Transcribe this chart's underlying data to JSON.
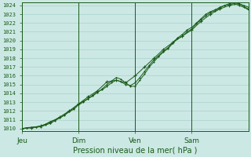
{
  "xlabel": "Pression niveau de la mer( hPa )",
  "bg_color": "#cce8e4",
  "grid_color": "#b0d4d0",
  "line_color": "#1a5c1a",
  "marker_color": "#1a5c1a",
  "ylim": [
    1010,
    1024
  ],
  "yticks": [
    1010,
    1011,
    1012,
    1013,
    1014,
    1015,
    1016,
    1017,
    1018,
    1019,
    1020,
    1021,
    1022,
    1023,
    1024
  ],
  "xtick_labels": [
    "Jeu",
    "Dim",
    "Ven",
    "Sam"
  ],
  "xtick_positions": [
    0,
    36,
    72,
    108
  ],
  "xmax": 144,
  "series1_x": [
    0,
    3,
    6,
    9,
    12,
    15,
    18,
    21,
    24,
    27,
    30,
    33,
    36,
    39,
    42,
    45,
    48,
    51,
    54,
    57,
    60,
    63,
    66,
    69,
    72,
    75,
    78,
    81,
    84,
    87,
    90,
    93,
    96,
    99,
    102,
    105,
    108,
    111,
    114,
    117,
    120,
    123,
    126,
    129,
    132,
    135,
    138,
    141,
    144
  ],
  "series1_y": [
    1010.0,
    1010.1,
    1010.15,
    1010.2,
    1010.3,
    1010.5,
    1010.8,
    1011.0,
    1011.3,
    1011.6,
    1012.0,
    1012.3,
    1012.8,
    1013.1,
    1013.4,
    1013.8,
    1014.2,
    1014.4,
    1014.8,
    1015.2,
    1015.5,
    1015.3,
    1015.0,
    1014.9,
    1015.2,
    1015.8,
    1016.5,
    1017.2,
    1017.8,
    1018.3,
    1018.8,
    1019.2,
    1019.8,
    1020.3,
    1020.7,
    1021.2,
    1021.5,
    1022.0,
    1022.5,
    1023.0,
    1023.3,
    1023.5,
    1023.8,
    1024.0,
    1024.1,
    1024.2,
    1024.0,
    1023.8,
    1023.5
  ],
  "series2_x": [
    0,
    3,
    6,
    9,
    12,
    15,
    18,
    21,
    24,
    27,
    30,
    33,
    36,
    39,
    42,
    45,
    48,
    51,
    54,
    57,
    60,
    63,
    66,
    69,
    72,
    75,
    78,
    81,
    84,
    87,
    90,
    93,
    96,
    99,
    102,
    105,
    108,
    111,
    114,
    117,
    120,
    123,
    126,
    129,
    132,
    135,
    138,
    141,
    144
  ],
  "series2_y": [
    1010.0,
    1010.05,
    1010.1,
    1010.15,
    1010.2,
    1010.4,
    1010.6,
    1010.9,
    1011.2,
    1011.5,
    1011.9,
    1012.2,
    1012.7,
    1013.0,
    1013.4,
    1013.7,
    1014.1,
    1014.5,
    1015.0,
    1015.4,
    1015.8,
    1015.6,
    1015.2,
    1014.8,
    1014.8,
    1015.5,
    1016.2,
    1017.0,
    1017.6,
    1018.2,
    1018.7,
    1019.1,
    1019.7,
    1020.2,
    1020.5,
    1021.0,
    1021.3,
    1021.9,
    1022.4,
    1022.8,
    1023.2,
    1023.4,
    1023.7,
    1024.0,
    1024.2,
    1024.3,
    1024.2,
    1024.0,
    1023.8
  ],
  "series3_x": [
    0,
    6,
    12,
    18,
    24,
    30,
    36,
    42,
    48,
    54,
    60,
    66,
    72,
    78,
    84,
    90,
    96,
    102,
    108,
    114,
    120,
    126,
    132,
    138,
    144
  ],
  "series3_y": [
    1010.0,
    1010.1,
    1010.3,
    1010.7,
    1011.3,
    1012.0,
    1012.8,
    1013.6,
    1014.3,
    1015.3,
    1015.5,
    1015.2,
    1016.0,
    1017.0,
    1018.0,
    1019.0,
    1019.8,
    1020.5,
    1021.2,
    1022.2,
    1023.0,
    1023.6,
    1024.0,
    1024.2,
    1023.6
  ]
}
